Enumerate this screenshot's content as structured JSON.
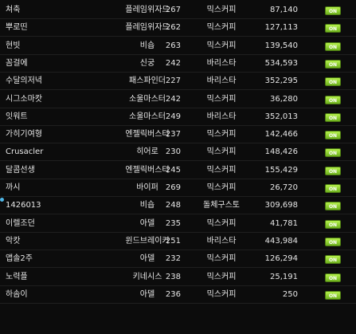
{
  "rows": [
    {
      "name": "쳐축",
      "job": "플레임위자드",
      "level": "267",
      "world": "믹스커피",
      "score": "87,140",
      "toggle": "ON"
    },
    {
      "name": "뿌로띤",
      "job": "플레임위자드",
      "level": "262",
      "world": "믹스커피",
      "score": "127,113",
      "toggle": "ON"
    },
    {
      "name": "현빗",
      "job": "비숍",
      "level": "263",
      "world": "믹스커피",
      "score": "139,540",
      "toggle": "ON"
    },
    {
      "name": "꼼걸에",
      "job": "신궁",
      "level": "242",
      "world": "바리스타",
      "score": "534,593",
      "toggle": "ON"
    },
    {
      "name": "수달의저녁",
      "job": "패스파인더",
      "level": "227",
      "world": "바리스타",
      "score": "352,295",
      "toggle": "ON"
    },
    {
      "name": "시그소마캇",
      "job": "소울마스터",
      "level": "242",
      "world": "믹스커피",
      "score": "36,280",
      "toggle": "ON"
    },
    {
      "name": "잇워트",
      "job": "소울마스터",
      "level": "249",
      "world": "바리스타",
      "score": "352,013",
      "toggle": "ON"
    },
    {
      "name": "가히기여형",
      "job": "엔젤릭버스터",
      "level": "237",
      "world": "믹스커피",
      "score": "142,466",
      "toggle": "ON"
    },
    {
      "name": "Crusacler",
      "job": "히어로",
      "level": "230",
      "world": "믹스커피",
      "score": "148,426",
      "toggle": "ON"
    },
    {
      "name": "달콤선생",
      "job": "엔젤릭버스터",
      "level": "245",
      "world": "믹스커피",
      "score": "155,429",
      "toggle": "ON"
    },
    {
      "name": "까시",
      "job": "바이퍼",
      "level": "269",
      "world": "믹스커피",
      "score": "26,720",
      "toggle": "ON"
    },
    {
      "name": "1426013",
      "job": "비숍",
      "level": "248",
      "world": "돌체구스토",
      "score": "309,698",
      "toggle": "ON",
      "marker": true
    },
    {
      "name": "이렐조던",
      "job": "아델",
      "level": "235",
      "world": "믹스커피",
      "score": "41,781",
      "toggle": "ON"
    },
    {
      "name": "악캇",
      "job": "윈드브레이커",
      "level": "251",
      "world": "바리스타",
      "score": "443,984",
      "toggle": "ON"
    },
    {
      "name": "앱솔2주",
      "job": "아델",
      "level": "232",
      "world": "믹스커피",
      "score": "126,294",
      "toggle": "ON"
    },
    {
      "name": "노력플",
      "job": "키네시스",
      "level": "238",
      "world": "믹스커피",
      "score": "25,191",
      "toggle": "ON"
    },
    {
      "name": "하솜이",
      "job": "아델",
      "level": "236",
      "world": "믹스커피",
      "score": "250",
      "toggle": "ON"
    }
  ],
  "colors": {
    "background": "#0c0c0c",
    "text": "#e6e6e6",
    "toggle_on": "#8fd13a",
    "marker": "#4fb6e6"
  }
}
